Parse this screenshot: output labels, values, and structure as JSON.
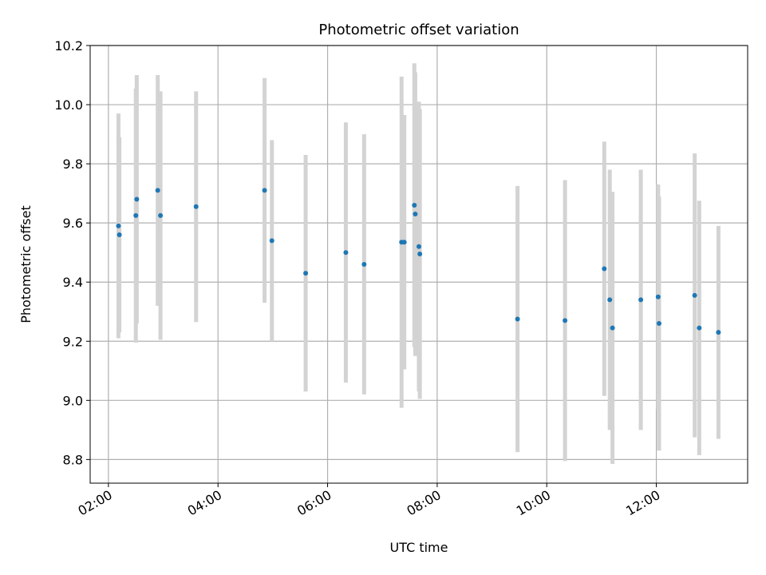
{
  "chart_data": {
    "type": "scatter",
    "title": "Photometric offset variation",
    "xlabel": "UTC time",
    "ylabel": "Photometric offset",
    "xlim": [
      "01:40",
      "13:40"
    ],
    "ylim": [
      8.72,
      10.2
    ],
    "grid": true,
    "x_ticks": [
      "02:00",
      "04:00",
      "06:00",
      "08:00",
      "10:00",
      "12:00"
    ],
    "y_ticks": [
      "8.8",
      "9.0",
      "9.2",
      "9.4",
      "9.6",
      "9.8",
      "10.0",
      "10.2"
    ],
    "point_color": "#1f77b4",
    "errorbar_color": "#d3d3d3",
    "points": [
      {
        "time": "02:11",
        "y": 9.59,
        "err": 0.38
      },
      {
        "time": "02:12",
        "y": 9.56,
        "err": 0.33
      },
      {
        "time": "02:30",
        "y": 9.625,
        "err": 0.43
      },
      {
        "time": "02:31",
        "y": 9.68,
        "err": 0.42
      },
      {
        "time": "02:54",
        "y": 9.71,
        "err": 0.39
      },
      {
        "time": "02:57",
        "y": 9.625,
        "err": 0.42
      },
      {
        "time": "03:36",
        "y": 9.655,
        "err": 0.39
      },
      {
        "time": "04:51",
        "y": 9.71,
        "err": 0.38
      },
      {
        "time": "04:59",
        "y": 9.54,
        "err": 0.34
      },
      {
        "time": "05:36",
        "y": 9.43,
        "err": 0.4
      },
      {
        "time": "06:20",
        "y": 9.5,
        "err": 0.44
      },
      {
        "time": "06:40",
        "y": 9.46,
        "err": 0.44
      },
      {
        "time": "07:21",
        "y": 9.535,
        "err": 0.56
      },
      {
        "time": "07:24",
        "y": 9.535,
        "err": 0.43
      },
      {
        "time": "07:35",
        "y": 9.66,
        "err": 0.48
      },
      {
        "time": "07:36",
        "y": 9.63,
        "err": 0.48
      },
      {
        "time": "07:40",
        "y": 9.52,
        "err": 0.49
      },
      {
        "time": "07:41",
        "y": 9.495,
        "err": 0.49
      },
      {
        "time": "09:28",
        "y": 9.275,
        "err": 0.45
      },
      {
        "time": "10:20",
        "y": 9.27,
        "err": 0.475
      },
      {
        "time": "11:03",
        "y": 9.445,
        "err": 0.43
      },
      {
        "time": "11:09",
        "y": 9.34,
        "err": 0.44
      },
      {
        "time": "11:12",
        "y": 9.245,
        "err": 0.46
      },
      {
        "time": "11:43",
        "y": 9.34,
        "err": 0.44
      },
      {
        "time": "12:02",
        "y": 9.35,
        "err": 0.38
      },
      {
        "time": "12:03",
        "y": 9.26,
        "err": 0.43
      },
      {
        "time": "12:42",
        "y": 9.355,
        "err": 0.48
      },
      {
        "time": "12:47",
        "y": 9.245,
        "err": 0.43
      },
      {
        "time": "13:08",
        "y": 9.23,
        "err": 0.36
      }
    ]
  }
}
